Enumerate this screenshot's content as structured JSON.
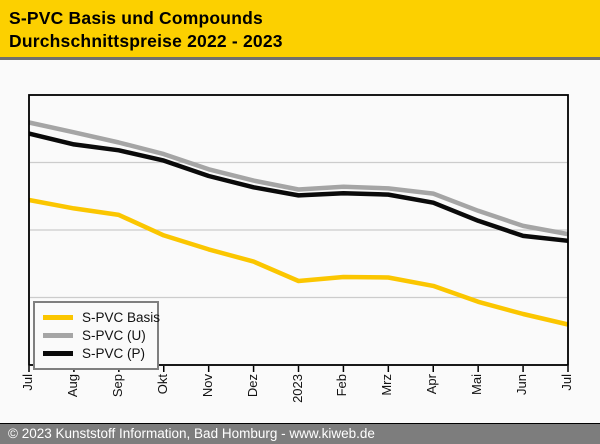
{
  "header": {
    "title_line1": "S-PVC Basis und Compounds",
    "title_line2": "Durchschnittspreise 2022 - 2023",
    "background_color": "#FCD000"
  },
  "footer": {
    "text": "© 2023 Kunststoff Information, Bad Homburg - www.kiweb.de",
    "background_color": "#7D7D7D",
    "text_color": "#FFFFFF"
  },
  "chart_data": {
    "type": "line",
    "title": "S-PVC Basis und Compounds Durchschnittspreise 2022 - 2023",
    "categories": [
      "Jul",
      "Aug",
      "Sep",
      "Okt",
      "Nov",
      "Dez",
      "2023",
      "Feb",
      "Mrz",
      "Apr",
      "Mai",
      "Jun",
      "Jul"
    ],
    "series": [
      {
        "name": "S-PVC Basis",
        "color": "#FBC600",
        "values": [
          61.1,
          58.0,
          55.6,
          48.0,
          42.8,
          38.3,
          31.1,
          32.6,
          32.4,
          29.3,
          23.4,
          18.9,
          15.0
        ]
      },
      {
        "name": "S-PVC (U)",
        "color": "#A5A5A5",
        "values": [
          89.8,
          86.2,
          82.4,
          78.1,
          72.5,
          68.3,
          65.0,
          66.0,
          65.4,
          63.5,
          57.1,
          51.5,
          48.5
        ]
      },
      {
        "name": "S-PVC (P)",
        "color": "#0A0A0A",
        "values": [
          85.7,
          81.7,
          79.5,
          75.7,
          70.0,
          65.8,
          62.8,
          63.6,
          63.1,
          60.1,
          53.4,
          47.8,
          46.0
        ]
      }
    ],
    "xlabel": "",
    "ylabel": "",
    "ylim": [
      0,
      100
    ],
    "y_axis_labels_visible": false,
    "value_scale": "percent of plot height from bottom (source y-axis is unlabeled)",
    "gridlines_y": [
      25,
      50,
      75
    ],
    "grid": true,
    "legend_position": "bottom-left",
    "gridline_color": "#CCCCCC",
    "plot_border_color": "#000000"
  }
}
